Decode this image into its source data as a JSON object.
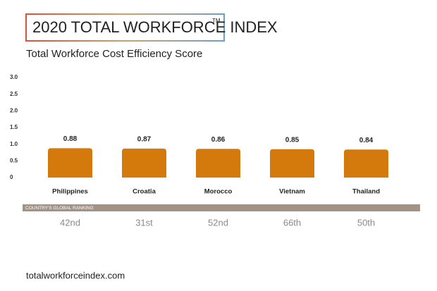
{
  "chart_data": {
    "type": "bar",
    "title": "2020 TOTAL WORKFORCE INDEX",
    "title_mark": "TM",
    "subtitle": "Total Workforce Cost Efficiency Score",
    "categories": [
      "Philippines",
      "Croatia",
      "Morocco",
      "Vietnam",
      "Thailand"
    ],
    "values": [
      0.88,
      0.87,
      0.86,
      0.85,
      0.84
    ],
    "color": "#d47a0c",
    "ylim": [
      0,
      3
    ],
    "yticks": [
      0,
      {
        "value": 0.5,
        "label": "0.5"
      },
      {
        "value": 1,
        "label": "1.0"
      },
      {
        "value": 1.5,
        "label": "1.5"
      },
      {
        "value": 2,
        "label": "2.0"
      },
      {
        "value": 2.5,
        "label": "2.5"
      },
      {
        "value": 3,
        "label": "3.0"
      }
    ],
    "grid": false,
    "ranking_label": "COUNTRY'S GLOBAL RANKING",
    "rankings": [
      "42nd",
      "31st",
      "52nd",
      "66th",
      "50th"
    ],
    "source": "totalworkforceindex.com"
  }
}
